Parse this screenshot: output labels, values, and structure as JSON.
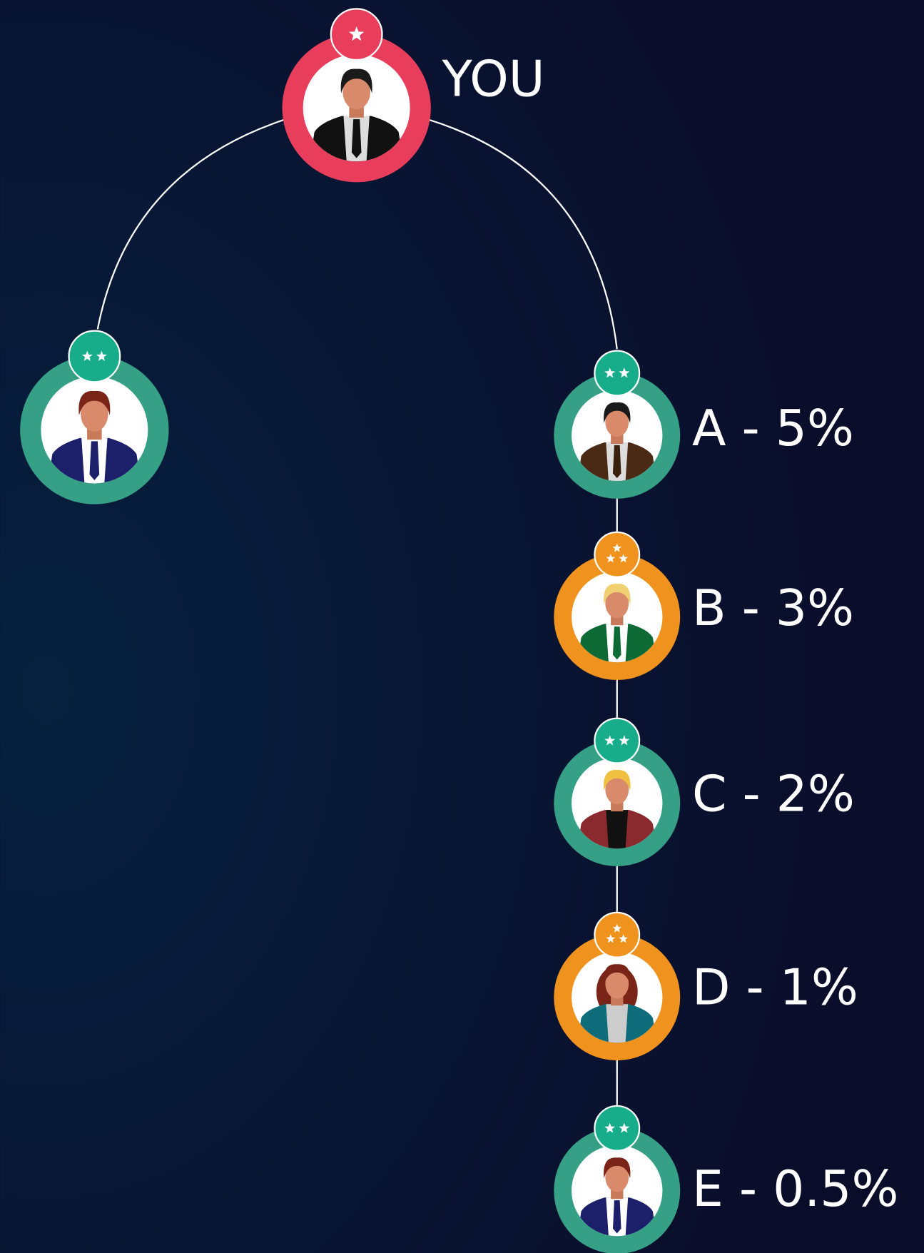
{
  "nodes": [
    {
      "label": "YOU"
    },
    {},
    {
      "label": "A - 5%"
    },
    {
      "label": "B - 3%"
    },
    {
      "label": "C - 2%"
    },
    {
      "label": "D - 1%"
    },
    {
      "label": "E - 0.5%"
    }
  ]
}
